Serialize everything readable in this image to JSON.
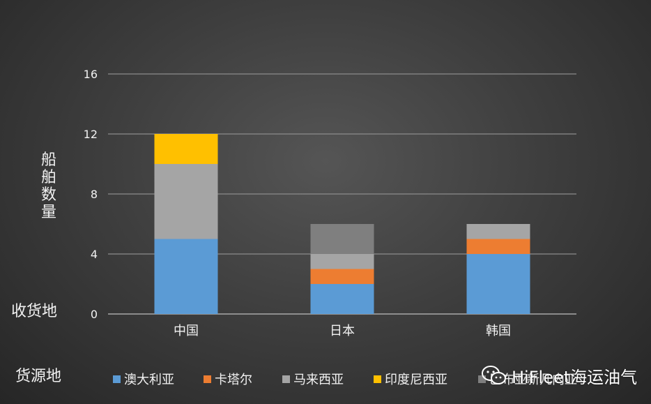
{
  "chart_data": {
    "type": "bar",
    "stacked": true,
    "categories": [
      "中国",
      "日本",
      "韩国"
    ],
    "series": [
      {
        "name": "澳大利亚",
        "color": "#5b9bd5",
        "values": [
          5,
          2,
          4
        ]
      },
      {
        "name": "卡塔尔",
        "color": "#ed7d31",
        "values": [
          0,
          1,
          1
        ]
      },
      {
        "name": "马来西亚",
        "color": "#a5a5a5",
        "values": [
          5,
          1,
          1
        ]
      },
      {
        "name": "印度尼西亚",
        "color": "#ffc000",
        "values": [
          2,
          0,
          0
        ]
      },
      {
        "name": "巴布亚新几内亚",
        "color": "#7f7f7f",
        "values": [
          0,
          2,
          0
        ]
      }
    ],
    "ylabel": "船舶数量",
    "xlabel": "收货地",
    "legend_title": "货源地",
    "ylim": [
      0,
      16
    ],
    "yticks": [
      0,
      4,
      8,
      12,
      16
    ],
    "grid": true,
    "legend_position": "bottom"
  },
  "watermark": {
    "text": "HiFleet海运油气",
    "icon": "wechat-icon"
  }
}
